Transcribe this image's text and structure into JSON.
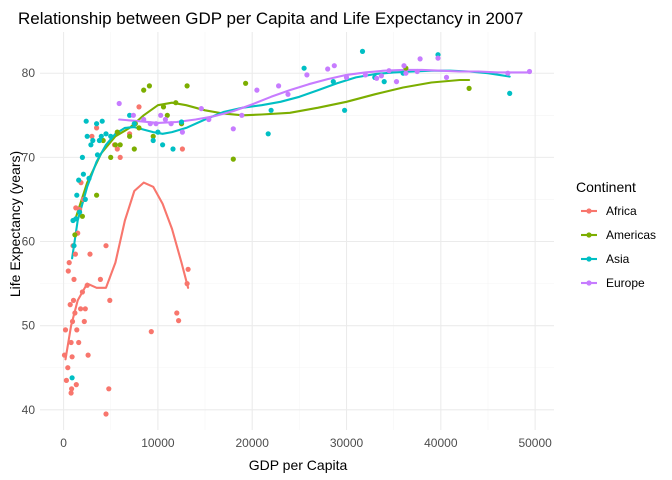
{
  "chart_data": {
    "type": "scatter",
    "title": "Relationship between GDP per Capita and Life Expectancy in 2007",
    "xlabel": "GDP per Capita",
    "ylabel": "Life Expectancy (years)",
    "xlim": [
      -2500,
      52000
    ],
    "ylim": [
      37.6,
      84.9
    ],
    "x_ticks": [
      0,
      10000,
      20000,
      30000,
      40000,
      50000
    ],
    "x_tick_labels": [
      "0",
      "10000",
      "20000",
      "30000",
      "40000",
      "50000"
    ],
    "y_ticks": [
      40,
      50,
      60,
      70,
      80
    ],
    "y_tick_labels": [
      "40",
      "50",
      "60",
      "70",
      "80"
    ],
    "grid": true,
    "legend": {
      "title": "Continent",
      "position": "right"
    },
    "overlay": "smooth trend line per continent",
    "series": [
      {
        "name": "Africa",
        "color": "#F8766D",
        "points": [
          [
            100,
            46.5
          ],
          [
            200,
            49.5
          ],
          [
            300,
            43.5
          ],
          [
            450,
            45.0
          ],
          [
            500,
            56.5
          ],
          [
            600,
            57.5
          ],
          [
            700,
            52.5
          ],
          [
            800,
            48.0
          ],
          [
            800,
            42.0
          ],
          [
            850,
            42.5
          ],
          [
            900,
            46.3
          ],
          [
            950,
            50.5
          ],
          [
            1000,
            59.5
          ],
          [
            1050,
            53.0
          ],
          [
            1100,
            55.5
          ],
          [
            1200,
            51.5
          ],
          [
            1250,
            58.5
          ],
          [
            1300,
            64.0
          ],
          [
            1350,
            43.0
          ],
          [
            1400,
            49.5
          ],
          [
            1500,
            61.0
          ],
          [
            1600,
            48.0
          ],
          [
            1700,
            63.8
          ],
          [
            1800,
            52.0
          ],
          [
            1850,
            67.0
          ],
          [
            2000,
            54.0
          ],
          [
            2100,
            65.0
          ],
          [
            2200,
            50.5
          ],
          [
            2300,
            52.0
          ],
          [
            2500,
            54.8
          ],
          [
            2600,
            46.5
          ],
          [
            2800,
            58.5
          ],
          [
            3000,
            72.5
          ],
          [
            3500,
            73.5
          ],
          [
            3900,
            55.5
          ],
          [
            4500,
            59.5
          ],
          [
            4500,
            39.5
          ],
          [
            4800,
            42.5
          ],
          [
            4900,
            53.0
          ],
          [
            5400,
            71.5
          ],
          [
            5700,
            71.0
          ],
          [
            6000,
            70.0
          ],
          [
            7000,
            72.8
          ],
          [
            8000,
            76.0
          ],
          [
            9300,
            49.3
          ],
          [
            12000,
            51.5
          ],
          [
            12200,
            50.6
          ],
          [
            12500,
            74.0
          ],
          [
            12600,
            71.0
          ],
          [
            13200,
            56.7
          ],
          [
            13100,
            55.0
          ]
        ],
        "trend": [
          [
            200,
            46
          ],
          [
            800,
            50
          ],
          [
            1500,
            53
          ],
          [
            2500,
            55
          ],
          [
            3500,
            54.5
          ],
          [
            4500,
            54.5
          ],
          [
            5500,
            57.5
          ],
          [
            6500,
            62.5
          ],
          [
            7500,
            66
          ],
          [
            8500,
            67
          ],
          [
            9500,
            66.5
          ],
          [
            10500,
            64.5
          ],
          [
            11500,
            61.5
          ],
          [
            12500,
            57.5
          ],
          [
            13200,
            54.5
          ]
        ]
      },
      {
        "name": "Americas",
        "color": "#7CAE00",
        "points": [
          [
            1200,
            60.8
          ],
          [
            2000,
            63.0
          ],
          [
            3500,
            65.5
          ],
          [
            4200,
            72.0
          ],
          [
            5000,
            70.0
          ],
          [
            5500,
            71.5
          ],
          [
            5700,
            73.0
          ],
          [
            6000,
            71.5
          ],
          [
            7000,
            72.5
          ],
          [
            7500,
            71.0
          ],
          [
            7600,
            74.0
          ],
          [
            8000,
            73.5
          ],
          [
            8500,
            78.0
          ],
          [
            9100,
            78.5
          ],
          [
            9500,
            72.5
          ],
          [
            10600,
            76.0
          ],
          [
            11000,
            75.0
          ],
          [
            11900,
            76.5
          ],
          [
            12500,
            74.0
          ],
          [
            13100,
            78.5
          ],
          [
            18000,
            69.8
          ],
          [
            19300,
            78.8
          ],
          [
            36300,
            80.6
          ],
          [
            43000,
            78.2
          ]
        ],
        "trend": [
          [
            1200,
            62.5
          ],
          [
            2500,
            67
          ],
          [
            4000,
            70.5
          ],
          [
            5500,
            72.5
          ],
          [
            7000,
            73.5
          ],
          [
            8500,
            75
          ],
          [
            10000,
            76.2
          ],
          [
            11500,
            76.5
          ],
          [
            13000,
            76.2
          ],
          [
            15000,
            75.6
          ],
          [
            17000,
            75.2
          ],
          [
            19000,
            75
          ],
          [
            21000,
            75.1
          ],
          [
            24000,
            75.3
          ],
          [
            27000,
            75.9
          ],
          [
            30000,
            76.6
          ],
          [
            33000,
            77.5
          ],
          [
            36000,
            78.3
          ],
          [
            39000,
            78.9
          ],
          [
            42000,
            79.2
          ],
          [
            43000,
            79.2
          ]
        ]
      },
      {
        "name": "Asia",
        "color": "#00BFC4",
        "points": [
          [
            900,
            43.8
          ],
          [
            1000,
            62.5
          ],
          [
            1100,
            59.5
          ],
          [
            1300,
            62.7
          ],
          [
            1400,
            65.5
          ],
          [
            1600,
            67.3
          ],
          [
            1700,
            63.5
          ],
          [
            2000,
            70.0
          ],
          [
            2100,
            68.0
          ],
          [
            2300,
            65.0
          ],
          [
            2400,
            74.3
          ],
          [
            2500,
            72.5
          ],
          [
            2700,
            67.5
          ],
          [
            2900,
            71.5
          ],
          [
            3100,
            72.0
          ],
          [
            3500,
            74.0
          ],
          [
            3600,
            70.3
          ],
          [
            3800,
            72.0
          ],
          [
            4000,
            72.5
          ],
          [
            4100,
            74.3
          ],
          [
            4500,
            72.8
          ],
          [
            5000,
            72.5
          ],
          [
            7000,
            75.0
          ],
          [
            7500,
            74.0
          ],
          [
            9500,
            72.0
          ],
          [
            10000,
            73.0
          ],
          [
            10500,
            71.5
          ],
          [
            11600,
            71.0
          ],
          [
            12500,
            74.2
          ],
          [
            21700,
            72.8
          ],
          [
            22000,
            75.6
          ],
          [
            25500,
            80.6
          ],
          [
            28600,
            79.0
          ],
          [
            29800,
            75.6
          ],
          [
            31700,
            82.6
          ],
          [
            33000,
            79.5
          ],
          [
            34000,
            79.0
          ],
          [
            36000,
            80.0
          ],
          [
            39700,
            82.2
          ],
          [
            47300,
            77.6
          ]
        ],
        "trend": [
          [
            900,
            58
          ],
          [
            1500,
            62.5
          ],
          [
            2500,
            66.5
          ],
          [
            3500,
            69.5
          ],
          [
            4500,
            71.5
          ],
          [
            5500,
            72.8
          ],
          [
            6500,
            73.5
          ],
          [
            7500,
            73.6
          ],
          [
            8500,
            73.3
          ],
          [
            9500,
            73
          ],
          [
            10500,
            72.8
          ],
          [
            11500,
            73
          ],
          [
            13000,
            73.5
          ],
          [
            15000,
            74.5
          ],
          [
            17000,
            75.4
          ],
          [
            19000,
            75.9
          ],
          [
            21000,
            76.2
          ],
          [
            23000,
            76.6
          ],
          [
            25000,
            77.2
          ],
          [
            27000,
            78
          ],
          [
            29000,
            78.8
          ],
          [
            31000,
            79.5
          ],
          [
            33000,
            79.9
          ],
          [
            35000,
            80.1
          ],
          [
            37000,
            80.2
          ],
          [
            39000,
            80.3
          ],
          [
            41000,
            80.3
          ],
          [
            43000,
            80.2
          ],
          [
            45000,
            80
          ],
          [
            47300,
            79.6
          ]
        ],
        "trend_note": ""
      },
      {
        "name": "Europe",
        "color": "#C77CFF",
        "points": [
          [
            5900,
            76.4
          ],
          [
            7400,
            75.0
          ],
          [
            8500,
            74.5
          ],
          [
            9200,
            74.0
          ],
          [
            9800,
            74.0
          ],
          [
            10300,
            75.0
          ],
          [
            10800,
            74.5
          ],
          [
            11400,
            74.0
          ],
          [
            12600,
            73.0
          ],
          [
            14600,
            75.8
          ],
          [
            15400,
            74.5
          ],
          [
            18000,
            73.4
          ],
          [
            18900,
            75.0
          ],
          [
            20500,
            78.0
          ],
          [
            22800,
            78.5
          ],
          [
            23800,
            77.5
          ],
          [
            25800,
            79.8
          ],
          [
            28000,
            80.5
          ],
          [
            28700,
            80.9
          ],
          [
            30000,
            79.5
          ],
          [
            32000,
            79.8
          ],
          [
            33200,
            79.4
          ],
          [
            33700,
            79.7
          ],
          [
            34500,
            80.3
          ],
          [
            35300,
            79.0
          ],
          [
            36100,
            80.9
          ],
          [
            36300,
            80.0
          ],
          [
            37500,
            80.2
          ],
          [
            37800,
            81.7
          ],
          [
            39700,
            81.8
          ],
          [
            40600,
            79.5
          ],
          [
            47100,
            80.0
          ],
          [
            49400,
            80.2
          ]
        ],
        "trend": [
          [
            5900,
            74.5
          ],
          [
            8000,
            74.3
          ],
          [
            10000,
            74.1
          ],
          [
            12000,
            74.2
          ],
          [
            14000,
            74.5
          ],
          [
            16000,
            74.9
          ],
          [
            18000,
            75.5
          ],
          [
            20000,
            76.3
          ],
          [
            22000,
            77.2
          ],
          [
            24000,
            78
          ],
          [
            26000,
            78.7
          ],
          [
            28000,
            79.3
          ],
          [
            30000,
            79.8
          ],
          [
            32000,
            80.1
          ],
          [
            34000,
            80.3
          ],
          [
            36000,
            80.4
          ],
          [
            38000,
            80.4
          ],
          [
            40000,
            80.3
          ],
          [
            42000,
            80.2
          ],
          [
            44000,
            80.2
          ],
          [
            46000,
            80.1
          ],
          [
            48000,
            80.1
          ],
          [
            49400,
            80.1
          ]
        ]
      }
    ]
  }
}
